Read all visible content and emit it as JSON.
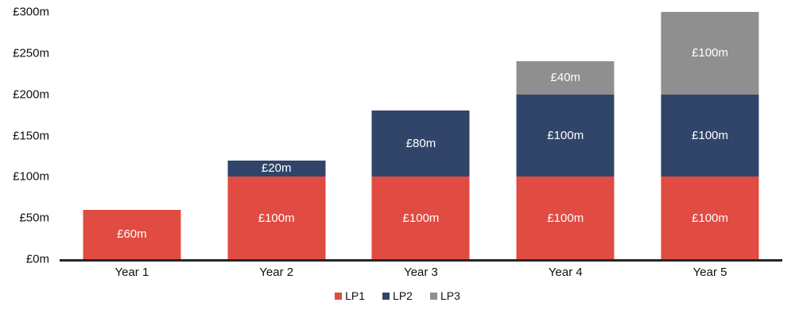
{
  "chart_data": {
    "type": "bar",
    "stacked": true,
    "title": "",
    "xlabel": "",
    "ylabel": "",
    "categories": [
      "Year 1",
      "Year 2",
      "Year 3",
      "Year 4",
      "Year 5"
    ],
    "series": [
      {
        "name": "LP1",
        "color": "#E04B42",
        "values": [
          60,
          100,
          100,
          100,
          100
        ],
        "labels": [
          "£60m",
          "£100m",
          "£100m",
          "£100m",
          "£100m"
        ]
      },
      {
        "name": "LP2",
        "color": "#304569",
        "values": [
          0,
          20,
          80,
          100,
          100
        ],
        "labels": [
          "",
          "£20m",
          "£80m",
          "£100m",
          "£100m"
        ]
      },
      {
        "name": "LP3",
        "color": "#8F8F8F",
        "values": [
          0,
          0,
          0,
          40,
          100
        ],
        "labels": [
          "",
          "",
          "",
          "£40m",
          "£100m"
        ]
      }
    ],
    "totals": [
      60,
      120,
      180,
      240,
      300
    ],
    "ylim": [
      0,
      300
    ],
    "ytick_step": 50,
    "ytick_labels": [
      "£0m",
      "£50m",
      "£100m",
      "£150m",
      "£200m",
      "£250m",
      "£300m"
    ],
    "grid": false,
    "legend": [
      "LP1",
      "LP2",
      "LP3"
    ],
    "legend_position": "bottom-center",
    "data_label_color": "#ffffff",
    "axis_text_color": "#111111",
    "baseline_color": "#262626",
    "background_color": "#ffffff"
  }
}
